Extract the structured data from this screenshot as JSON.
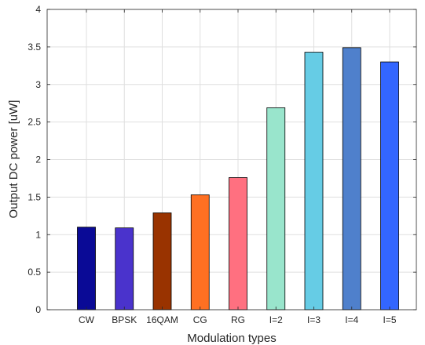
{
  "chart_data": {
    "type": "bar",
    "categories": [
      "CW",
      "BPSK",
      "16QAM",
      "CG",
      "RG",
      "I=2",
      "I=3",
      "I=4",
      "I=5"
    ],
    "values": [
      1.1,
      1.09,
      1.29,
      1.53,
      1.76,
      2.69,
      3.43,
      3.49,
      3.3
    ],
    "colors": [
      "#0a0a96",
      "#4a33cc",
      "#993300",
      "#ff7022",
      "#ff7080",
      "#99e5cc",
      "#66cce5",
      "#4f80cc",
      "#3366ff"
    ],
    "xlabel": "Modulation types",
    "ylabel": "Output DC power [uW]",
    "ylim": [
      0,
      4
    ],
    "yticks": [
      "0",
      "0.5",
      "1",
      "1.5",
      "2",
      "2.5",
      "3",
      "3.5",
      "4"
    ],
    "grid": true,
    "legend": "none"
  }
}
